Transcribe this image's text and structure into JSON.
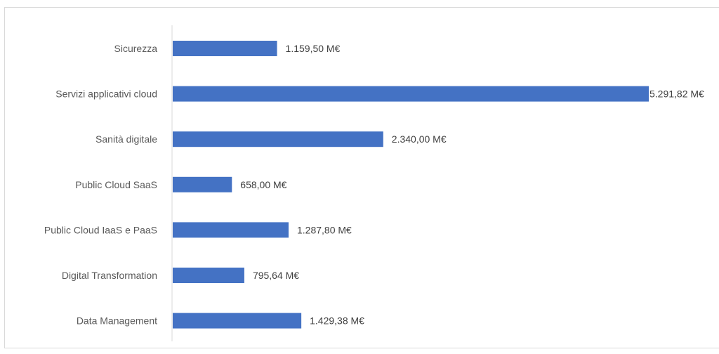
{
  "chart_data": {
    "type": "bar",
    "orientation": "horizontal",
    "categories": [
      "Sicurezza",
      "Servizi applicativi cloud",
      "Sanità digitale",
      "Public Cloud SaaS",
      "Public Cloud IaaS e PaaS",
      "Digital Transformation",
      "Data Management"
    ],
    "values": [
      1159.5,
      5291.82,
      2340.0,
      658.0,
      1287.8,
      795.64,
      1429.38
    ],
    "value_labels": [
      "1.159,50 M€",
      "5.291,82 M€",
      "2.340,00 M€",
      "658,00 M€",
      "1.287,80 M€",
      "795,64 M€",
      "1.429,38 M€"
    ],
    "bar_color": "#4472C4",
    "axis_color": "#d9d9d9",
    "grid": false,
    "legend": "none"
  }
}
